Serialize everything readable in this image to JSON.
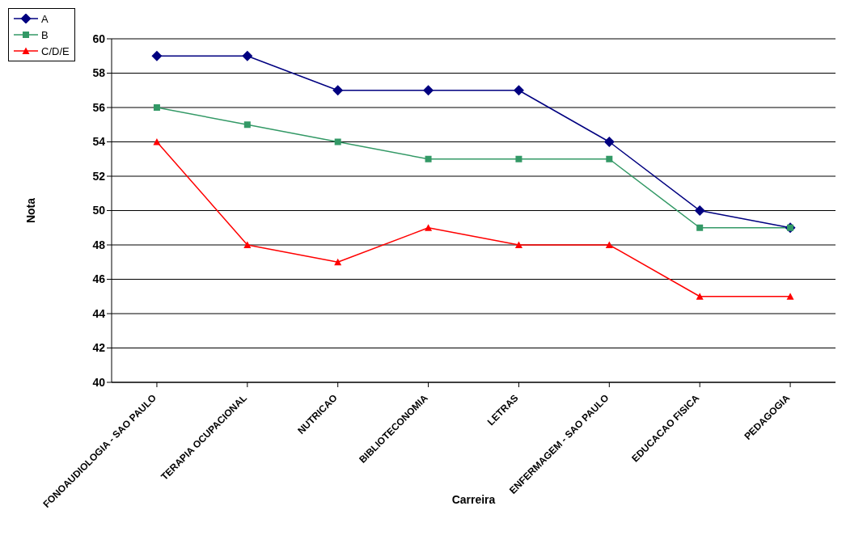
{
  "chart_data": {
    "type": "line",
    "xlabel": "Carreira",
    "ylabel": "Nota",
    "categories": [
      "FONOAUDIOLOGIA - SAO PAULO",
      "TERAPIA OCUPACIONAL",
      "NUTRICAO",
      "BIBLIOTECONOMIA",
      "LETRAS",
      "ENFERMAGEM - SAO PAULO",
      "EDUCACAO FISICA",
      "PEDAGOGIA"
    ],
    "series": [
      {
        "name": "A",
        "color": "#000080",
        "marker": "diamond",
        "values": [
          59,
          59,
          57,
          57,
          57,
          54,
          50,
          49
        ]
      },
      {
        "name": "B",
        "color": "#339966",
        "marker": "square",
        "values": [
          56,
          55,
          54,
          53,
          53,
          53,
          49,
          49
        ]
      },
      {
        "name": "C/D/E",
        "color": "#ff0000",
        "marker": "triangle",
        "values": [
          54,
          48,
          47,
          49,
          48,
          48,
          45,
          45
        ]
      }
    ],
    "ylim": [
      40,
      60
    ],
    "yticks": [
      40,
      42,
      44,
      46,
      48,
      50,
      52,
      54,
      56,
      58,
      60
    ],
    "grid": "y",
    "legend": "top left"
  }
}
